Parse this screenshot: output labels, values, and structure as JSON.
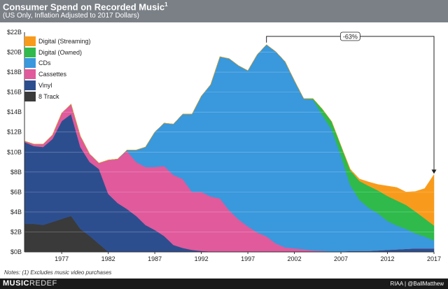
{
  "header": {
    "title": "Consumer Spend on Recorded Music",
    "title_sup": "1",
    "subtitle": "(US Only, Inflation Adjusted to 2017 Dollars)"
  },
  "notes": "Notes: (1) Excludes music video purchases",
  "footer": {
    "brand_bold": "MUSIC",
    "brand_light": "REDEF",
    "source": "RIAA  |  @BallMatthew"
  },
  "chart_data": {
    "type": "area",
    "stacked": true,
    "x": [
      1973,
      1974,
      1975,
      1976,
      1977,
      1978,
      1979,
      1980,
      1981,
      1982,
      1983,
      1984,
      1985,
      1986,
      1987,
      1988,
      1989,
      1990,
      1991,
      1992,
      1993,
      1994,
      1995,
      1996,
      1997,
      1998,
      1999,
      2000,
      2001,
      2002,
      2003,
      2004,
      2005,
      2006,
      2007,
      2008,
      2009,
      2010,
      2011,
      2012,
      2013,
      2014,
      2015,
      2016,
      2017
    ],
    "xticks": [
      1977,
      1982,
      1987,
      1992,
      1997,
      2002,
      2007,
      2012,
      2017
    ],
    "ylim": [
      0,
      22
    ],
    "yticks": [
      0,
      2,
      4,
      6,
      8,
      10,
      12,
      14,
      16,
      18,
      20,
      22
    ],
    "ytick_labels": [
      "$0B",
      "$2B",
      "$4B",
      "$6B",
      "$8B",
      "$10B",
      "$12B",
      "$14B",
      "$16B",
      "$18B",
      "$20B",
      "$22B"
    ],
    "series": [
      {
        "name": "8 Track",
        "color": "#3a3a3a",
        "values": [
          2.8,
          2.8,
          2.7,
          3.0,
          3.3,
          3.6,
          2.3,
          1.6,
          0.8,
          0,
          0,
          0,
          0,
          0,
          0,
          0,
          0,
          0,
          0,
          0,
          0,
          0,
          0,
          0,
          0,
          0,
          0,
          0,
          0,
          0,
          0,
          0,
          0,
          0,
          0,
          0,
          0,
          0,
          0,
          0,
          0,
          0,
          0,
          0,
          0
        ]
      },
      {
        "name": "Vinyl",
        "color": "#2d4e8e",
        "values": [
          8.2,
          7.8,
          7.8,
          8.3,
          9.8,
          10.2,
          8.2,
          7.4,
          7.5,
          5.8,
          4.9,
          4.3,
          3.6,
          2.7,
          2.2,
          1.6,
          0.7,
          0.4,
          0.2,
          0.1,
          0.05,
          0.05,
          0.05,
          0.05,
          0.05,
          0.05,
          0.05,
          0.05,
          0.05,
          0.05,
          0.05,
          0.05,
          0.05,
          0.05,
          0.05,
          0.1,
          0.1,
          0.1,
          0.15,
          0.2,
          0.25,
          0.3,
          0.35,
          0.35,
          0.35
        ]
      },
      {
        "name": "Cassettes",
        "color": "#e05a9c",
        "values": [
          0.1,
          0.2,
          0.3,
          0.4,
          0.8,
          1.0,
          1.1,
          0.8,
          0.6,
          3.4,
          4.4,
          5.8,
          5.4,
          5.8,
          6.3,
          7.0,
          7.0,
          6.9,
          5.8,
          5.9,
          5.5,
          5.3,
          4.1,
          3.2,
          2.5,
          1.9,
          1.5,
          0.8,
          0.4,
          0.3,
          0.2,
          0.1,
          0.05,
          0,
          0,
          0,
          0,
          0,
          0,
          0,
          0,
          0,
          0,
          0,
          0
        ]
      },
      {
        "name": "CDs",
        "color": "#3a98dc",
        "values": [
          0,
          0,
          0,
          0,
          0,
          0,
          0,
          0,
          0,
          0,
          0,
          0.1,
          1.2,
          2.0,
          3.5,
          4.3,
          5.1,
          6.5,
          7.8,
          9.6,
          11.2,
          14.2,
          15.2,
          15.4,
          15.6,
          17.8,
          19.2,
          19.2,
          18.6,
          16.8,
          15.1,
          15.1,
          13.6,
          12.2,
          9.6,
          6.6,
          5.1,
          4.3,
          3.7,
          2.9,
          2.4,
          2.0,
          1.5,
          1.2,
          0.8
        ]
      },
      {
        "name": "Digital (Owned)",
        "color": "#2fba4b",
        "values": [
          0,
          0,
          0,
          0,
          0,
          0,
          0,
          0,
          0,
          0,
          0,
          0,
          0,
          0,
          0,
          0,
          0,
          0,
          0,
          0,
          0,
          0,
          0,
          0,
          0,
          0,
          0,
          0,
          0,
          0,
          0,
          0.1,
          0.6,
          0.8,
          1.0,
          1.5,
          1.9,
          2.2,
          2.3,
          2.5,
          2.5,
          2.4,
          2.2,
          1.8,
          1.5
        ]
      },
      {
        "name": "Digital (Streaming)",
        "color": "#f89b1c",
        "values": [
          0,
          0,
          0,
          0,
          0,
          0,
          0,
          0,
          0,
          0,
          0,
          0,
          0,
          0,
          0,
          0,
          0,
          0,
          0,
          0,
          0,
          0,
          0,
          0,
          0,
          0,
          0,
          0,
          0,
          0,
          0,
          0,
          0,
          0,
          0,
          0.1,
          0.2,
          0.4,
          0.6,
          1.0,
          1.3,
          1.3,
          2.0,
          3.0,
          5.1
        ]
      }
    ],
    "annotation": {
      "label": "-63%",
      "from_x": 1999,
      "to_x": 2017
    }
  }
}
